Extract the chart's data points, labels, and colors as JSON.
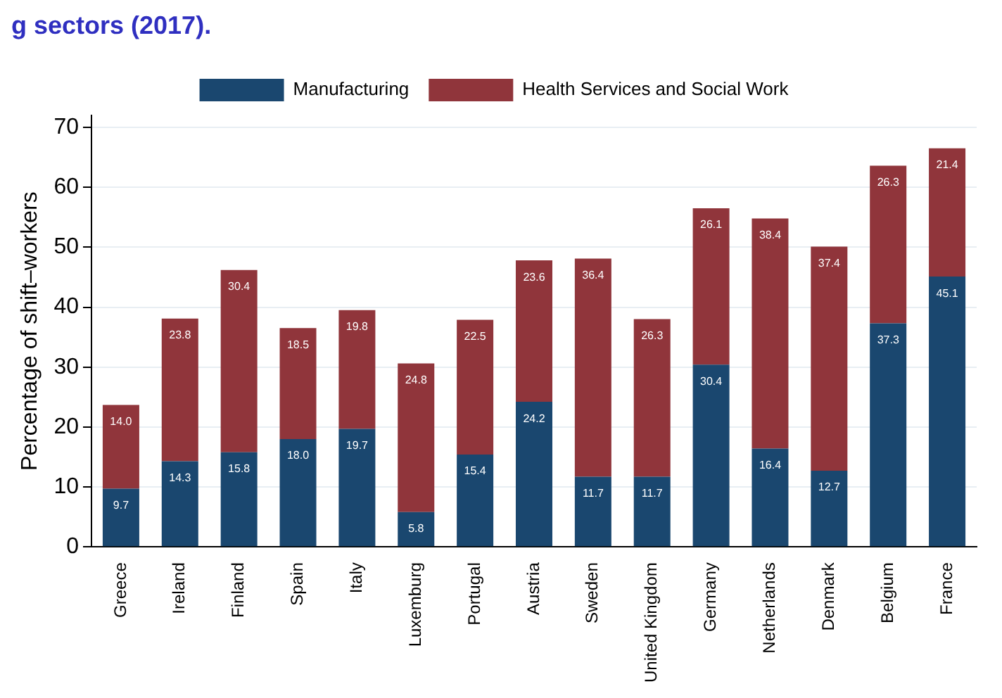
{
  "chart_data": {
    "type": "bar",
    "title": "g sectors (2017).",
    "ylabel": "Percentage of shift–workers",
    "categories": [
      "Greece",
      "Ireland",
      "Finland",
      "Spain",
      "Italy",
      "Luxemburg",
      "Portugal",
      "Austria",
      "Sweden",
      "United Kingdom",
      "Germany",
      "Netherlands",
      "Denmark",
      "Belgium",
      "France"
    ],
    "series": [
      {
        "name": "Manufacturing",
        "color": "#1a476f",
        "values": [
          9.7,
          14.3,
          15.8,
          18.0,
          19.7,
          5.8,
          15.4,
          24.2,
          11.7,
          11.7,
          30.4,
          16.4,
          12.7,
          37.3,
          45.1
        ],
        "value_labels": [
          "9.7",
          "14.3",
          "15.8",
          "18.0",
          "19.7",
          "5.8",
          "15.4",
          "24.2",
          "11.7",
          "11.7",
          "30.4",
          "16.4",
          "12.7",
          "37.3",
          "45.1"
        ]
      },
      {
        "name": "Health Services and Social Work",
        "color": "#90353b",
        "values": [
          14.0,
          23.8,
          30.4,
          18.5,
          19.8,
          24.8,
          22.5,
          23.6,
          36.4,
          26.3,
          26.1,
          38.4,
          37.4,
          26.3,
          21.4
        ],
        "value_labels": [
          "14.0",
          "23.8",
          "30.4",
          "18.5",
          "19.8",
          "24.8",
          "22.5",
          "23.6",
          "36.4",
          "26.3",
          "26.1",
          "38.4",
          "37.4",
          "26.3",
          "21.4"
        ]
      }
    ],
    "stacked": true,
    "ylim": [
      0,
      72
    ],
    "yticks": [
      0,
      10,
      20,
      30,
      40,
      50,
      60,
      70
    ],
    "grid": "y",
    "legend": "top"
  }
}
